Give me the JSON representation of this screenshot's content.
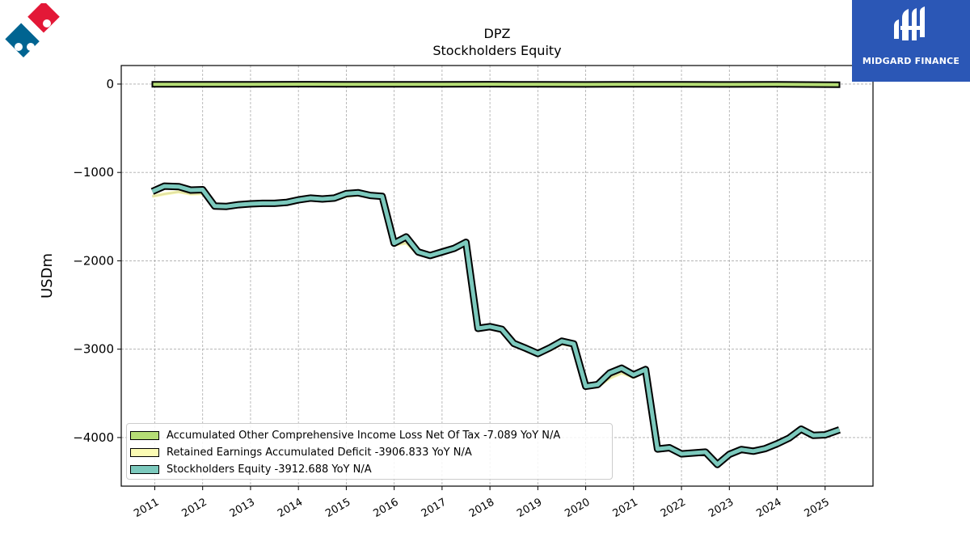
{
  "chart_data": {
    "type": "area",
    "title": "DPZ",
    "subtitle": "Stockholders  Equity",
    "ylabel": "USDm",
    "xlabel": "",
    "ylim": [
      -4550,
      210
    ],
    "xlim": [
      2010.3,
      2026.0
    ],
    "yticks": [
      0,
      -1000,
      -2000,
      -3000,
      -4000
    ],
    "ytick_labels": [
      "0",
      "−1000",
      "−2000",
      "−3000",
      "−4000"
    ],
    "xticks": [
      2011,
      2012,
      2013,
      2014,
      2015,
      2016,
      2017,
      2018,
      2019,
      2020,
      2021,
      2022,
      2023,
      2024,
      2025
    ],
    "grid": true,
    "legend_position": "lower-left",
    "series": [
      {
        "name": "Accumulated Other Comprehensive Income Loss Net Of Tax",
        "legend_label": "Accumulated Other Comprehensive Income Loss Net Of Tax  -7.089 YoY N/A",
        "color": "#b5dd75",
        "x": [
          2010.95,
          2012.0,
          2013.0,
          2014.0,
          2015.0,
          2016.0,
          2017.0,
          2018.0,
          2019.0,
          2020.0,
          2021.0,
          2022.0,
          2023.0,
          2024.0,
          2025.3
        ],
        "values": [
          -3,
          -3,
          -2,
          -1,
          -2,
          -3,
          -2,
          -1,
          -3,
          -4,
          -2,
          -2,
          -4,
          -3,
          -7.089
        ]
      },
      {
        "name": "Retained Earnings Accumulated Deficit",
        "legend_label": "Retained Earnings Accumulated Deficit  -3906.833 YoY N/A",
        "color": "#fbfbb4",
        "x": [
          2010.95,
          2011.2,
          2011.5,
          2011.75,
          2012.0,
          2012.25,
          2012.5,
          2012.75,
          2013.0,
          2013.25,
          2013.5,
          2013.75,
          2014.0,
          2014.25,
          2014.5,
          2014.75,
          2015.0,
          2015.25,
          2015.5,
          2015.75,
          2016.0,
          2016.25,
          2016.5,
          2016.75,
          2017.0,
          2017.25,
          2017.5,
          2017.75,
          2018.0,
          2018.25,
          2018.5,
          2018.75,
          2019.0,
          2019.25,
          2019.5,
          2019.75,
          2020.0,
          2020.25,
          2020.5,
          2020.75,
          2021.0,
          2021.25,
          2021.5,
          2021.75,
          2022.0,
          2022.25,
          2022.5,
          2022.75,
          2023.0,
          2023.25,
          2023.5,
          2023.75,
          2024.0,
          2024.25,
          2024.5,
          2024.75,
          2025.0,
          2025.3
        ],
        "values": [
          -1270,
          -1245,
          -1220,
          -1245,
          -1240,
          -1385,
          -1390,
          -1370,
          -1360,
          -1355,
          -1355,
          -1350,
          -1330,
          -1310,
          -1320,
          -1310,
          -1270,
          -1255,
          -1270,
          -1280,
          -1820,
          -1800,
          -1925,
          -1945,
          -1910,
          -1880,
          -1810,
          -2775,
          -2760,
          -2790,
          -2945,
          -3000,
          -3055,
          -3010,
          -2940,
          -2965,
          -3435,
          -3425,
          -3330,
          -3270,
          -3320,
          -3250,
          -4140,
          -4125,
          -4195,
          -4185,
          -4170,
          -4315,
          -4200,
          -4140,
          -4165,
          -4135,
          -4080,
          -4015,
          -3935,
          -3985,
          -3980,
          -3907
        ]
      },
      {
        "name": "Stockholders Equity",
        "legend_label": "Stockholders Equity  -3912.688 YoY N/A",
        "color": "#7cc9bd",
        "x": [
          2010.95,
          2011.2,
          2011.5,
          2011.75,
          2012.0,
          2012.25,
          2012.5,
          2012.75,
          2013.0,
          2013.25,
          2013.5,
          2013.75,
          2014.0,
          2014.25,
          2014.5,
          2014.75,
          2015.0,
          2015.25,
          2015.5,
          2015.75,
          2016.0,
          2016.25,
          2016.5,
          2016.75,
          2017.0,
          2017.25,
          2017.5,
          2017.75,
          2018.0,
          2018.25,
          2018.5,
          2018.75,
          2019.0,
          2019.25,
          2019.5,
          2019.75,
          2020.0,
          2020.25,
          2020.5,
          2020.75,
          2021.0,
          2021.25,
          2021.5,
          2021.75,
          2022.0,
          2022.25,
          2022.5,
          2022.75,
          2023.0,
          2023.25,
          2023.5,
          2023.75,
          2024.0,
          2024.25,
          2024.5,
          2024.75,
          2025.0,
          2025.3
        ],
        "values": [
          -1215,
          -1155,
          -1160,
          -1200,
          -1195,
          -1380,
          -1385,
          -1365,
          -1355,
          -1350,
          -1350,
          -1340,
          -1310,
          -1290,
          -1300,
          -1290,
          -1240,
          -1230,
          -1260,
          -1270,
          -1800,
          -1730,
          -1900,
          -1940,
          -1900,
          -1860,
          -1790,
          -2765,
          -2745,
          -2775,
          -2935,
          -2990,
          -3050,
          -2985,
          -2910,
          -2940,
          -3420,
          -3400,
          -3270,
          -3215,
          -3290,
          -3230,
          -4130,
          -4115,
          -4185,
          -4175,
          -4165,
          -4305,
          -4190,
          -4135,
          -4155,
          -4125,
          -4070,
          -4005,
          -3905,
          -3975,
          -3970,
          -3913
        ]
      }
    ]
  },
  "branding": {
    "company_logo_icon": "dominos-logo-icon",
    "publisher_logo_icon": "midgard-finance-logo-icon",
    "publisher_name": "MIDGARD FINANCE",
    "publisher_color": "#2b57b6"
  }
}
